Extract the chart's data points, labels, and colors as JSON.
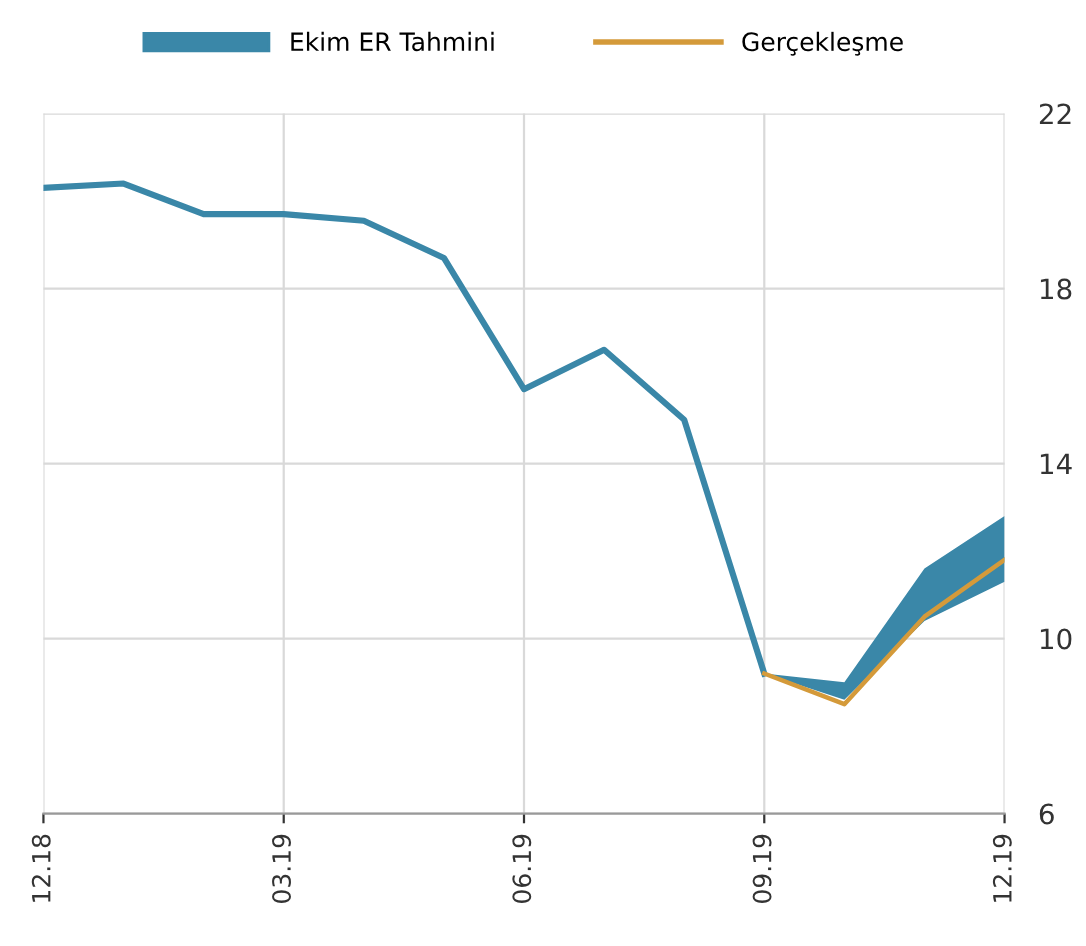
{
  "chart_data": {
    "type": "line",
    "categories": [
      "12.18",
      null,
      null,
      "03.19",
      null,
      null,
      "06.19",
      null,
      null,
      "09.19",
      null,
      null,
      "12.19"
    ],
    "series": [
      {
        "name": "Ekim ER Tahmini",
        "color": "#3a87a8",
        "values": [
          20.3,
          20.4,
          19.7,
          19.7,
          19.55,
          18.7,
          15.7,
          16.6,
          15.0,
          9.2,
          null,
          null,
          null
        ],
        "lower": [
          null,
          null,
          null,
          null,
          null,
          null,
          null,
          null,
          null,
          9.2,
          8.6,
          10.4,
          11.3
        ],
        "upper": [
          null,
          null,
          null,
          null,
          null,
          null,
          null,
          null,
          null,
          9.2,
          9.0,
          11.6,
          12.8
        ]
      },
      {
        "name": "Gerçekleşme",
        "color": "#d49a3a",
        "values": [
          null,
          null,
          null,
          null,
          null,
          null,
          null,
          null,
          null,
          9.2,
          8.5,
          10.5,
          11.8
        ]
      }
    ],
    "ylim": [
      6,
      22
    ],
    "yticks": [
      6,
      10,
      14,
      18,
      22
    ],
    "grid": true,
    "legend": "top"
  }
}
